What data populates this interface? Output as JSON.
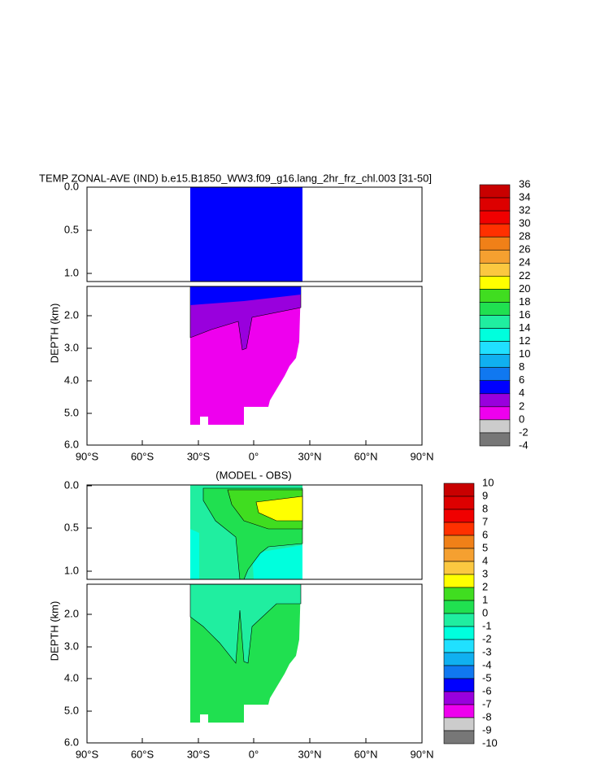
{
  "panels": [
    {
      "title": "TEMP ZONAL-AVE (IND) b.e15.B1850_WW3.f09_g16.lang_2hr_frz_chl.003 [31-50]",
      "y_label": "DEPTH (km)",
      "y_ticks_upper": [
        "0.0",
        "0.5",
        "1.0"
      ],
      "y_ticks_lower": [
        "2.0",
        "3.0",
        "4.0",
        "5.0",
        "6.0"
      ],
      "x_ticks": [
        "90°S",
        "60°S",
        "30°S",
        "0°",
        "30°N",
        "60°N",
        "90°N"
      ],
      "colorbar": {
        "labels": [
          "36",
          "34",
          "32",
          "30",
          "28",
          "26",
          "24",
          "22",
          "20",
          "18",
          "16",
          "14",
          "12",
          "10",
          "8",
          "6",
          "4",
          "2",
          "0",
          "-2",
          "-4"
        ],
        "colors": [
          "#c80000",
          "#dd0000",
          "#f00000",
          "#ff3000",
          "#f08018",
          "#f5a030",
          "#fbc840",
          "#ffff00",
          "#40dd20",
          "#20e050",
          "#20eea0",
          "#00ffdd",
          "#20e0ff",
          "#10b0f0",
          "#1078f0",
          "#0000ff",
          "#9900dd",
          "#ee00ee",
          "#cccccc",
          "#777777"
        ]
      }
    },
    {
      "title": "(MODEL - OBS)",
      "y_label": "DEPTH (km)",
      "y_ticks_upper": [
        "0.0",
        "0.5",
        "1.0"
      ],
      "y_ticks_lower": [
        "2.0",
        "3.0",
        "4.0",
        "5.0",
        "6.0"
      ],
      "x_ticks": [
        "90°S",
        "60°S",
        "30°S",
        "0°",
        "30°N",
        "60°N",
        "90°N"
      ],
      "colorbar": {
        "labels": [
          "10",
          "9",
          "8",
          "7",
          "6",
          "5",
          "4",
          "3",
          "2",
          "1",
          "0",
          "-1",
          "-2",
          "-3",
          "-4",
          "-5",
          "-6",
          "-7",
          "-8",
          "-9",
          "-10"
        ],
        "colors": [
          "#c80000",
          "#dd0000",
          "#f00000",
          "#ff3000",
          "#f08018",
          "#f5a030",
          "#fbc840",
          "#ffff00",
          "#40dd20",
          "#20e050",
          "#20eea0",
          "#00ffdd",
          "#20e0ff",
          "#10b0f0",
          "#1078f0",
          "#0000ff",
          "#9900dd",
          "#ee00ee",
          "#cccccc",
          "#777777"
        ]
      }
    }
  ]
}
